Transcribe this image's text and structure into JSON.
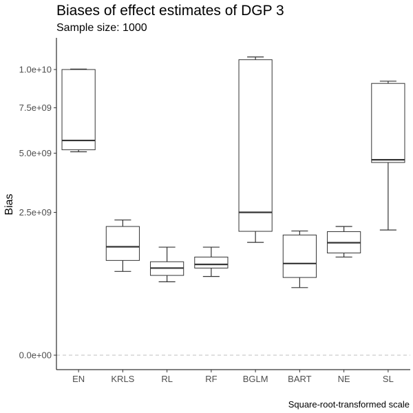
{
  "chart_data": {
    "type": "box",
    "title": "Biases of effect estimates of DGP 3",
    "subtitle": "Sample size: 1000",
    "ylabel": "Bias",
    "xlabel": "",
    "caption": "Square-root-transformed scale",
    "y_scale": "sqrt",
    "ylim": [
      -250000000.0,
      12000000000.0
    ],
    "y_ticks": [
      0,
      2500000000.0,
      5000000000.0,
      7500000000.0,
      10000000000.0
    ],
    "y_tick_labels": [
      "0.0e+00",
      "2.5e+09",
      "5.0e+09",
      "7.5e+09",
      "1.0e+10"
    ],
    "reference_line": 0,
    "grid": false,
    "categories": [
      "EN",
      "KRLS",
      "RL",
      "RF",
      "BGLM",
      "BART",
      "NE",
      "SL"
    ],
    "boxes": [
      {
        "min": 5070000000.0,
        "q1": 5170000000.0,
        "median": 5650000000.0,
        "q3": 10000000000.0,
        "max": 10030000000.0
      },
      {
        "min": 860000000.0,
        "q1": 1100000000.0,
        "median": 1440000000.0,
        "q3": 2030000000.0,
        "max": 2240000000.0
      },
      {
        "min": 660000000.0,
        "q1": 780000000.0,
        "median": 930000000.0,
        "q3": 1070000000.0,
        "max": 1430000000.0
      },
      {
        "min": 760000000.0,
        "q1": 930000000.0,
        "median": 1010000000.0,
        "q3": 1180000000.0,
        "max": 1430000000.0
      },
      {
        "min": 1560000000.0,
        "q1": 1880000000.0,
        "median": 2500000000.0,
        "q3": 10700000000.0,
        "max": 10900000000.0
      },
      {
        "min": 560000000.0,
        "q1": 740000000.0,
        "median": 1030000000.0,
        "q3": 1770000000.0,
        "max": 1890000000.0
      },
      {
        "min": 1180000000.0,
        "q1": 1280000000.0,
        "median": 1550000000.0,
        "q3": 1870000000.0,
        "max": 2030000000.0
      },
      {
        "min": 1920000000.0,
        "q1": 4550000000.0,
        "median": 4680000000.0,
        "q3": 9050000000.0,
        "max": 9200000000.0
      }
    ]
  }
}
